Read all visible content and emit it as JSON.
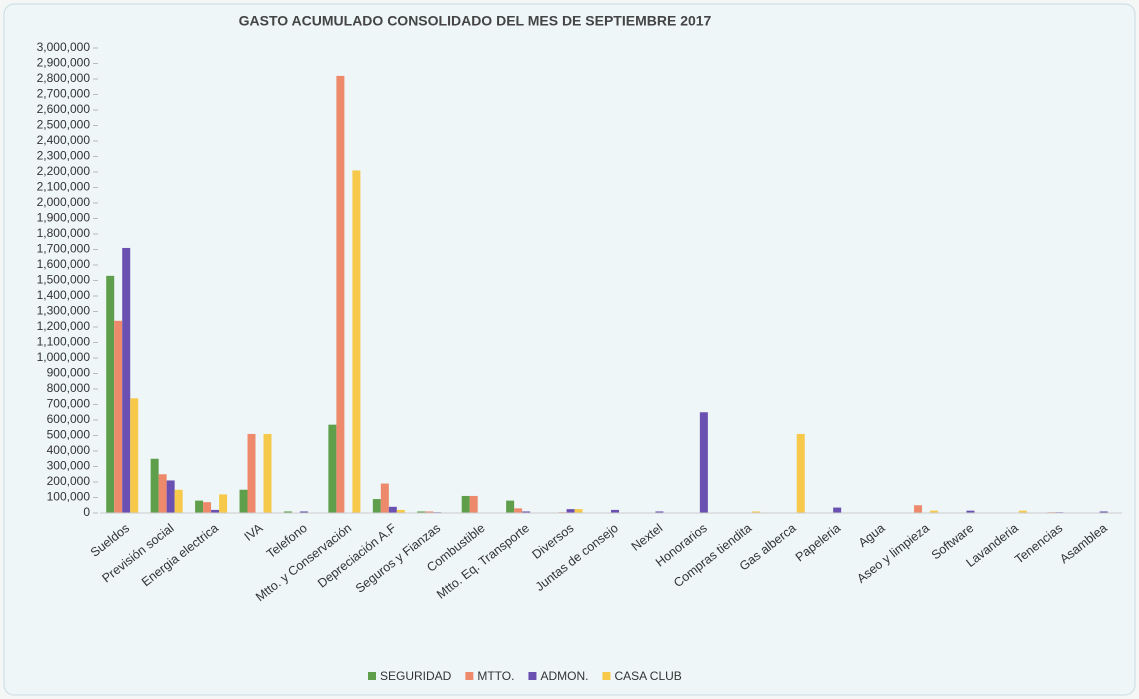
{
  "chart_data": {
    "type": "bar",
    "title": "GASTO ACUMULADO CONSOLIDADO DEL MES DE SEPTIEMBRE 2017",
    "categories": [
      "Sueldos",
      "Previsión social",
      "Energia electrica",
      "IVA",
      "Telefono",
      "Mtto. y Conservación",
      "Depreciación A.F",
      "Seguros y Fianzas",
      "Combustible",
      "Mtto. Eq. Transporte",
      "Diversos",
      "Juntas de consejo",
      "Nextel",
      "Honorarios",
      "Compras tiendita",
      "Gas alberca",
      "Papeleria",
      "Agua",
      "Aseo y limpieza",
      "Software",
      "Lavanderia",
      "Tenencias",
      "Asamblea"
    ],
    "series": [
      {
        "name": "SEGURIDAD",
        "color": "#5f9f4c",
        "values": [
          1530000,
          350000,
          80000,
          150000,
          10000,
          570000,
          90000,
          10000,
          110000,
          80000,
          0,
          0,
          0,
          0,
          0,
          0,
          0,
          0,
          0,
          0,
          0,
          0,
          0
        ]
      },
      {
        "name": "MTTO.",
        "color": "#ee8a6c",
        "values": [
          1240000,
          250000,
          70000,
          510000,
          0,
          2820000,
          190000,
          10000,
          110000,
          30000,
          5000,
          0,
          0,
          0,
          0,
          0,
          0,
          0,
          50000,
          0,
          0,
          5000,
          0
        ]
      },
      {
        "name": "ADMON.",
        "color": "#6a50b0",
        "values": [
          1710000,
          210000,
          20000,
          0,
          10000,
          0,
          40000,
          5000,
          0,
          10000,
          25000,
          20000,
          10000,
          650000,
          0,
          0,
          35000,
          0,
          0,
          15000,
          0,
          5000,
          10000
        ]
      },
      {
        "name": "CASA CLUB",
        "color": "#f6c94a",
        "values": [
          740000,
          150000,
          120000,
          510000,
          0,
          2210000,
          20000,
          0,
          0,
          0,
          25000,
          0,
          0,
          0,
          10000,
          510000,
          0,
          0,
          15000,
          0,
          15000,
          0,
          0
        ]
      }
    ],
    "ylim": [
      0,
      3000000
    ],
    "yticks": [
      0,
      {
        "value": 100000,
        "label": "100,000"
      },
      {
        "value": 200000,
        "label": "200,000"
      },
      {
        "value": 300000,
        "label": "300,000"
      },
      {
        "value": 400000,
        "label": "400,000"
      },
      {
        "value": 500000,
        "label": "500,000"
      },
      {
        "value": 600000,
        "label": "600,000"
      },
      {
        "value": 700000,
        "label": "700,000"
      },
      {
        "value": 800000,
        "label": "800,000"
      },
      {
        "value": 900000,
        "label": "900,000"
      },
      {
        "value": 1000000,
        "label": "1,000,000"
      },
      {
        "value": 1100000,
        "label": "1,100,000"
      },
      {
        "value": 1200000,
        "label": "1,200,000"
      },
      {
        "value": 1300000,
        "label": "1,300,000"
      },
      {
        "value": 1400000,
        "label": "1,400,000"
      },
      {
        "value": 1500000,
        "label": "1,500,000"
      },
      {
        "value": 1600000,
        "label": "1,600,000"
      },
      {
        "value": 1700000,
        "label": "1,700,000"
      },
      {
        "value": 1800000,
        "label": "1,800,000"
      },
      {
        "value": 1900000,
        "label": "1,900,000"
      },
      {
        "value": 2000000,
        "label": "2,000,000"
      },
      {
        "value": 2100000,
        "label": "2,100,000"
      },
      {
        "value": 2200000,
        "label": "2,200,000"
      },
      {
        "value": 2300000,
        "label": "2,300,000"
      },
      {
        "value": 2400000,
        "label": "2,400,000"
      },
      {
        "value": 2500000,
        "label": "2,500,000"
      },
      {
        "value": 2600000,
        "label": "2,600,000"
      },
      {
        "value": 2700000,
        "label": "2,700,000"
      },
      {
        "value": 2800000,
        "label": "2,800,000"
      },
      {
        "value": 2900000,
        "label": "2,900,000"
      },
      {
        "value": 3000000,
        "label": "3,000,000"
      }
    ],
    "grid": false,
    "legend": "bottom"
  }
}
